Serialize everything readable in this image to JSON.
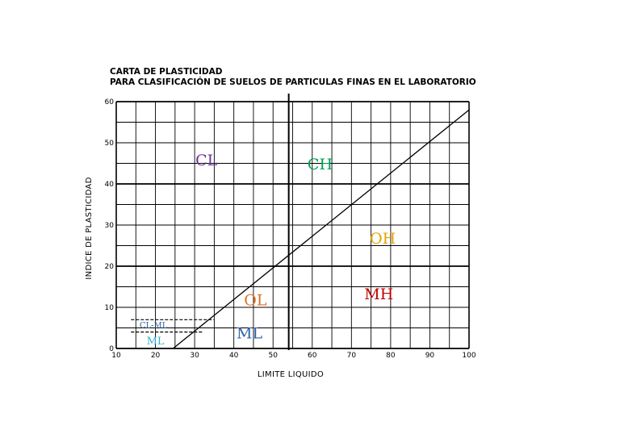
{
  "chart_data": {
    "type": "line",
    "title": "CARTA DE PLASTICIDAD",
    "subtitle": "PARA CLASIFICACIÓN DE SUELOS DE PARTICULAS FINAS EN EL LABORATORIO",
    "xlabel": "LIMITE LIQUIDO",
    "ylabel": "INDICE DE PLASTICIDAD",
    "xlim": [
      10,
      100
    ],
    "ylim": [
      0,
      60
    ],
    "x_ticks": [
      10,
      20,
      30,
      40,
      50,
      60,
      70,
      80,
      90,
      100
    ],
    "y_ticks": [
      0,
      10,
      20,
      30,
      40,
      50,
      60
    ],
    "x_tick_labels": [
      "10",
      "20",
      "30",
      "40",
      "50",
      "60",
      "70",
      "80",
      "90",
      "100"
    ],
    "y_tick_labels": [
      "0",
      "10",
      "20",
      "30",
      "40",
      "50",
      "60"
    ],
    "grid": true,
    "minor_grid_step_x": 5,
    "minor_grid_step_y": 5,
    "bold_grid_y": [
      20,
      40
    ],
    "a_line": {
      "x": [
        24.5,
        100
      ],
      "y": [
        0,
        58
      ]
    },
    "vertical_line_x": 54,
    "dashed_lines": [
      {
        "y": 7,
        "x": [
          15,
          35
        ]
      },
      {
        "y": 4,
        "x": [
          15,
          32
        ]
      }
    ],
    "region_labels": [
      {
        "text": "CL",
        "x": 33,
        "y": 44.5,
        "color": "#7030a0",
        "size": "large"
      },
      {
        "text": "CH",
        "x": 62,
        "y": 43.5,
        "color": "#00a050",
        "size": "large"
      },
      {
        "text": "OH",
        "x": 78,
        "y": 25.5,
        "color": "#e3a400",
        "size": "large"
      },
      {
        "text": "MH",
        "x": 77,
        "y": 12,
        "color": "#c00000",
        "size": "large"
      },
      {
        "text": "OL",
        "x": 45.5,
        "y": 10.5,
        "color": "#e07020",
        "size": "large"
      },
      {
        "text": "ML",
        "x": 44,
        "y": 2.5,
        "color": "#2e5fa6",
        "size": "large"
      },
      {
        "text": "CL-ML",
        "x": 19.5,
        "y": 5,
        "color": "#2e5fa6",
        "size": "small"
      },
      {
        "text": "ML",
        "x": 20,
        "y": 1,
        "color": "#33b0d0",
        "size": "medium"
      }
    ]
  }
}
